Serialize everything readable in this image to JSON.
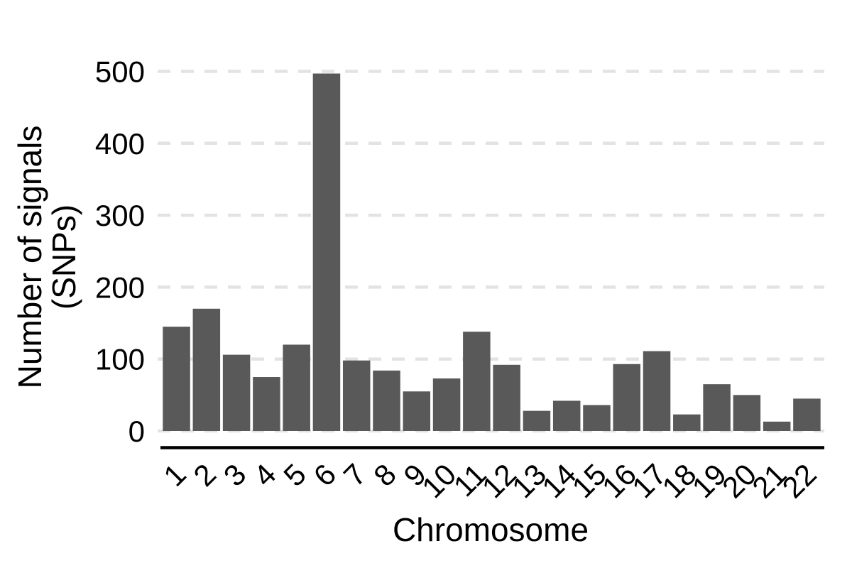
{
  "chart_data": {
    "type": "bar",
    "title": "",
    "xlabel": "Chromosome",
    "ylabel": "Number of signals (SNPs)",
    "ylabel_lines": [
      "Number of signals",
      "(SNPs)"
    ],
    "categories": [
      "1",
      "2",
      "3",
      "4",
      "5",
      "6",
      "7",
      "8",
      "9",
      "10",
      "11",
      "12",
      "13",
      "14",
      "15",
      "16",
      "17",
      "18",
      "19",
      "20",
      "21",
      "22"
    ],
    "values": [
      145,
      170,
      106,
      75,
      120,
      497,
      98,
      84,
      55,
      73,
      138,
      92,
      28,
      42,
      36,
      93,
      111,
      23,
      65,
      50,
      13,
      45
    ],
    "ylim": [
      0,
      500
    ],
    "yticks": [
      0,
      100,
      200,
      300,
      400,
      500
    ],
    "ytick_labels": [
      "0",
      "100",
      "200",
      "300",
      "400",
      "500"
    ],
    "x_tick_angle_deg": 45,
    "grid": "horizontal-dashed",
    "legend": "none",
    "colors": {
      "bar_fill": "#595959",
      "gridline": "#e3e3e3",
      "axis_line": "#000000",
      "text": "#000000",
      "background": "#ffffff"
    }
  }
}
